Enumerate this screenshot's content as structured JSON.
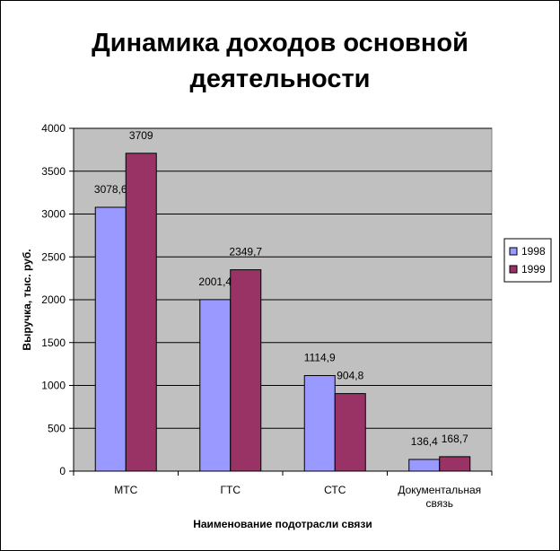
{
  "chart_data": {
    "type": "bar",
    "title_lines": [
      "Динамика доходов основной",
      "деятельности"
    ],
    "xlabel": "Наименование подотрасли связи",
    "ylabel": "Выручка, тыс. руб.",
    "categories": [
      "МТС",
      "ГТС",
      "СТС",
      "Документальная связь"
    ],
    "category_lines": [
      [
        "МТС"
      ],
      [
        "ГТС"
      ],
      [
        "СТС"
      ],
      [
        "Документальная",
        "связь"
      ]
    ],
    "series": [
      {
        "name": "1998",
        "values": [
          3078.6,
          2001.4,
          1114.9,
          136.4
        ],
        "labels": [
          "3078,6",
          "2001,4",
          "1114,9",
          "136,4"
        ],
        "color": "#9999ff"
      },
      {
        "name": "1999",
        "values": [
          3709,
          2349.7,
          904.8,
          168.7
        ],
        "labels": [
          "3709",
          "2349,7",
          "904,8",
          "168,7"
        ],
        "color": "#993366"
      }
    ],
    "ylim": [
      0,
      4000
    ],
    "yticks": [
      0,
      500,
      1000,
      1500,
      2000,
      2500,
      3000,
      3500,
      4000
    ],
    "grid": true,
    "plot_background": "#c0c0c0",
    "legend_position": "right"
  }
}
